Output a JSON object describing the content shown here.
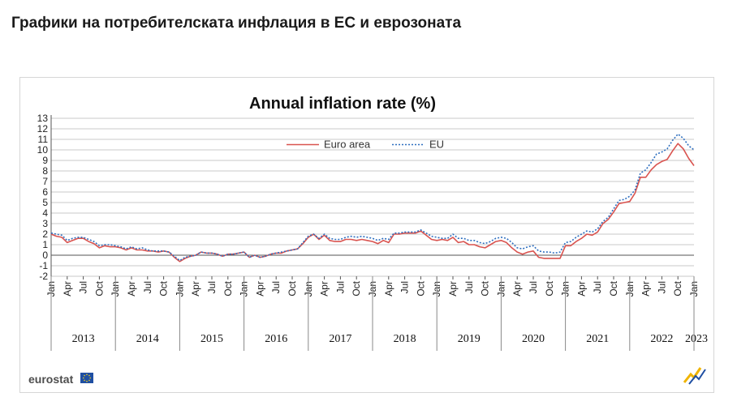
{
  "page": {
    "heading": "Графики на потребителската инфлация в ЕС и еврозоната"
  },
  "branding": {
    "source_logo": "eurostat",
    "flag_icon": "eu-flag-icon",
    "corner_icon": "eurostat-corner-mark-icon"
  },
  "colors": {
    "euro_area": "#d9534f",
    "eu": "#2e6fbf",
    "grid": "#c8c8c8",
    "axis": "#555555"
  },
  "chart_data": {
    "type": "line",
    "title": "Annual  inflation rate (%)",
    "xlabel": "",
    "ylabel": "",
    "ylim": [
      -2,
      13
    ],
    "yticks": [
      -2,
      -1,
      0,
      1,
      2,
      3,
      4,
      5,
      6,
      7,
      8,
      9,
      10,
      11,
      12,
      13
    ],
    "grid": true,
    "legend_position": "top-center",
    "month_labels": [
      "Jan",
      "Apr",
      "Jul",
      "Oct"
    ],
    "years": [
      "2013",
      "2014",
      "2015",
      "2016",
      "2017",
      "2018",
      "2019",
      "2020",
      "2021",
      "2022",
      "2023"
    ],
    "x_start": "2013-01",
    "series": [
      {
        "name": "Euro area",
        "style": "solid",
        "values": [
          2.0,
          1.8,
          1.7,
          1.2,
          1.4,
          1.6,
          1.6,
          1.3,
          1.1,
          0.7,
          0.9,
          0.8,
          0.8,
          0.7,
          0.5,
          0.7,
          0.5,
          0.5,
          0.4,
          0.4,
          0.3,
          0.4,
          0.3,
          -0.2,
          -0.6,
          -0.3,
          -0.1,
          0.0,
          0.3,
          0.2,
          0.2,
          0.1,
          -0.1,
          0.1,
          0.1,
          0.2,
          0.3,
          -0.2,
          0.0,
          -0.2,
          -0.1,
          0.1,
          0.2,
          0.2,
          0.4,
          0.5,
          0.6,
          1.1,
          1.7,
          2.0,
          1.5,
          1.9,
          1.4,
          1.3,
          1.3,
          1.5,
          1.5,
          1.4,
          1.5,
          1.4,
          1.3,
          1.1,
          1.4,
          1.2,
          2.0,
          2.0,
          2.1,
          2.1,
          2.1,
          2.3,
          1.9,
          1.5,
          1.4,
          1.5,
          1.4,
          1.7,
          1.2,
          1.3,
          1.0,
          1.0,
          0.8,
          0.7,
          1.0,
          1.3,
          1.4,
          1.2,
          0.7,
          0.3,
          0.1,
          0.3,
          0.4,
          -0.2,
          -0.3,
          -0.3,
          -0.3,
          -0.3,
          0.9,
          0.9,
          1.3,
          1.6,
          2.0,
          1.9,
          2.2,
          3.0,
          3.4,
          4.1,
          4.9,
          5.0,
          5.1,
          5.9,
          7.4,
          7.4,
          8.1,
          8.6,
          8.9,
          9.1,
          9.9,
          10.6,
          10.1,
          9.2,
          8.5
        ]
      },
      {
        "name": "EU",
        "style": "dotted",
        "values": [
          2.1,
          2.0,
          1.9,
          1.4,
          1.6,
          1.7,
          1.7,
          1.5,
          1.3,
          0.9,
          1.0,
          1.0,
          0.9,
          0.8,
          0.6,
          0.8,
          0.6,
          0.7,
          0.5,
          0.4,
          0.4,
          0.4,
          0.3,
          -0.1,
          -0.5,
          -0.2,
          -0.1,
          0.0,
          0.3,
          0.2,
          0.2,
          0.1,
          -0.1,
          0.1,
          0.1,
          0.2,
          0.3,
          -0.2,
          0.0,
          -0.2,
          -0.1,
          0.1,
          0.2,
          0.3,
          0.4,
          0.5,
          0.6,
          1.2,
          1.8,
          2.0,
          1.6,
          2.0,
          1.6,
          1.5,
          1.5,
          1.7,
          1.8,
          1.7,
          1.8,
          1.7,
          1.6,
          1.4,
          1.6,
          1.5,
          2.1,
          2.1,
          2.2,
          2.2,
          2.2,
          2.4,
          2.1,
          1.8,
          1.7,
          1.6,
          1.6,
          2.0,
          1.6,
          1.6,
          1.4,
          1.4,
          1.2,
          1.1,
          1.3,
          1.6,
          1.7,
          1.6,
          1.2,
          0.7,
          0.6,
          0.8,
          0.9,
          0.4,
          0.3,
          0.3,
          0.2,
          0.3,
          1.2,
          1.3,
          1.7,
          2.0,
          2.3,
          2.2,
          2.5,
          3.2,
          3.6,
          4.4,
          5.2,
          5.3,
          5.6,
          6.2,
          7.8,
          8.1,
          8.8,
          9.6,
          9.8,
          10.1,
          10.9,
          11.5,
          11.1,
          10.4,
          10.0
        ]
      }
    ]
  }
}
